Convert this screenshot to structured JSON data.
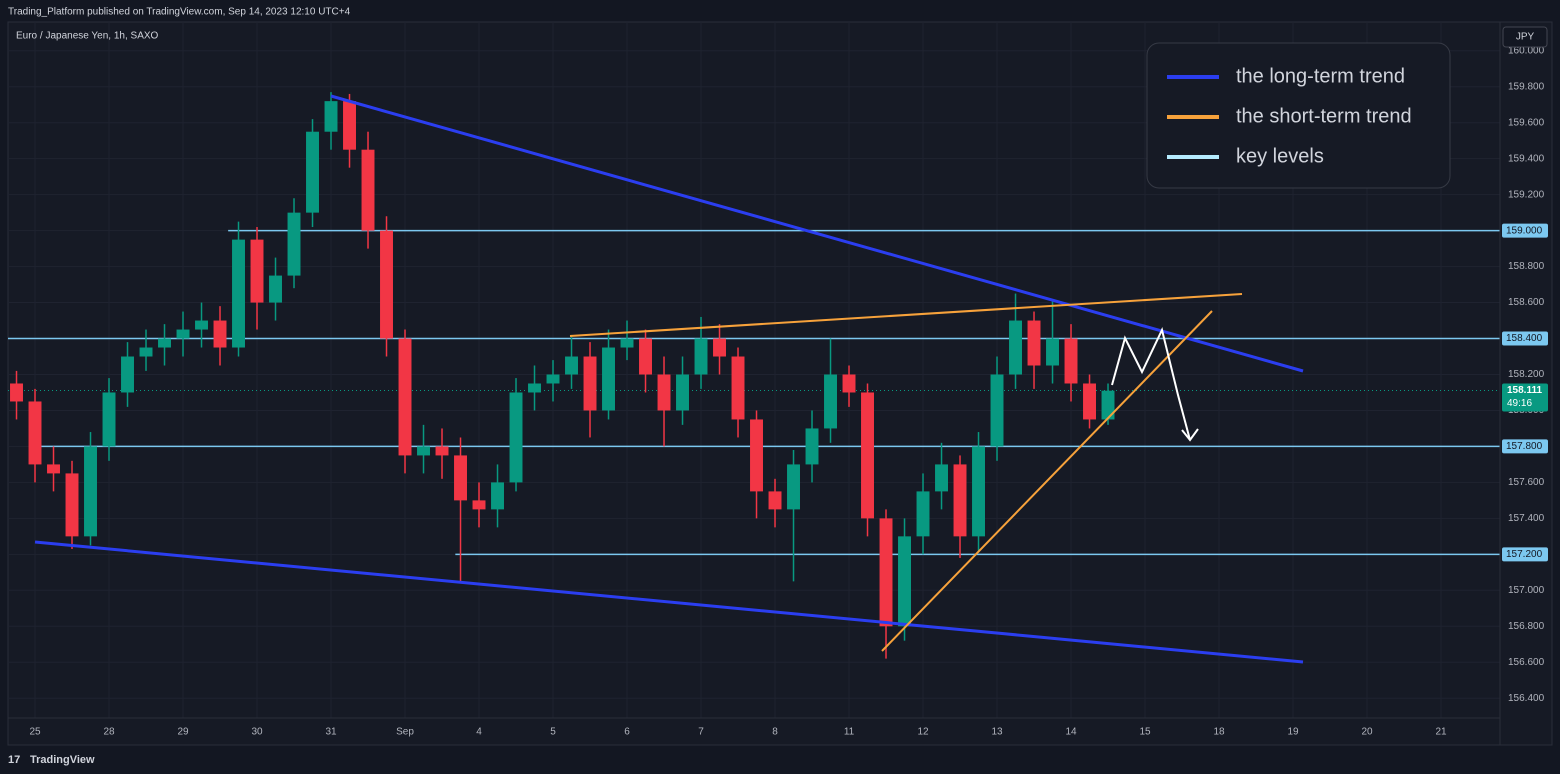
{
  "header": "Trading_Platform published on TradingView.com, Sep 14, 2023 12:10 UTC+4",
  "brand": "TradingView",
  "chart_data": {
    "type": "candlestick",
    "title": "Euro / Japanese Yen, 1h, SAXO",
    "currency": "JPY",
    "up_color": "#089981",
    "down_color": "#f23645",
    "x": [
      -0.25,
      0,
      0.25,
      0.5,
      0.75,
      1,
      1.25,
      1.5,
      1.75,
      2,
      2.25,
      2.5,
      2.75,
      3,
      3.25,
      3.5,
      3.75,
      4,
      4.25,
      4.5,
      4.75,
      5,
      5.25,
      5.5,
      5.75,
      6,
      6.25,
      6.5,
      6.75,
      7,
      7.25,
      7.5,
      7.75,
      8,
      8.25,
      8.5,
      8.75,
      9,
      9.25,
      9.5,
      9.75,
      10,
      10.25,
      10.5,
      10.75,
      11,
      11.25,
      11.5,
      11.75,
      12,
      12.25,
      12.5,
      12.75,
      13,
      13.25,
      13.5,
      13.75,
      14,
      14.25,
      14.5
    ],
    "open": [
      158.15,
      158.05,
      157.7,
      157.65,
      157.3,
      157.8,
      158.1,
      158.3,
      158.35,
      158.4,
      158.45,
      158.5,
      158.35,
      158.95,
      158.6,
      158.75,
      159.1,
      159.55,
      159.72,
      159.45,
      159.0,
      158.4,
      157.75,
      157.8,
      157.75,
      157.5,
      157.45,
      157.6,
      158.1,
      158.15,
      158.2,
      158.3,
      158.0,
      158.35,
      158.4,
      158.2,
      158.0,
      158.2,
      158.4,
      158.3,
      157.95,
      157.55,
      157.45,
      157.7,
      157.9,
      158.2,
      158.1,
      157.4,
      156.8,
      157.3,
      157.55,
      157.7,
      157.3,
      157.8,
      158.2,
      158.5,
      158.25,
      158.4,
      158.15,
      157.95
    ],
    "high": [
      158.22,
      158.12,
      157.8,
      157.72,
      157.88,
      158.18,
      158.38,
      158.45,
      158.48,
      158.55,
      158.6,
      158.58,
      159.05,
      159.02,
      158.85,
      159.18,
      159.62,
      159.77,
      159.76,
      159.55,
      159.08,
      158.45,
      157.92,
      157.9,
      157.85,
      157.6,
      157.7,
      158.18,
      158.25,
      158.28,
      158.42,
      158.38,
      158.45,
      158.5,
      158.45,
      158.3,
      158.3,
      158.52,
      158.48,
      158.35,
      158.0,
      157.62,
      157.78,
      158.0,
      158.4,
      158.25,
      158.15,
      157.45,
      157.4,
      157.65,
      157.82,
      157.75,
      157.88,
      158.3,
      158.65,
      158.55,
      158.62,
      158.48,
      158.2,
      158.15
    ],
    "low": [
      157.95,
      157.6,
      157.55,
      157.23,
      157.25,
      157.72,
      158.02,
      158.22,
      158.25,
      158.3,
      158.35,
      158.25,
      158.3,
      158.45,
      158.5,
      158.68,
      159.02,
      159.45,
      159.35,
      158.9,
      158.3,
      157.65,
      157.65,
      157.62,
      157.05,
      157.35,
      157.35,
      157.55,
      158.0,
      158.05,
      158.12,
      157.85,
      157.95,
      158.28,
      158.1,
      157.8,
      157.92,
      158.12,
      158.2,
      157.85,
      157.4,
      157.35,
      157.05,
      157.6,
      157.82,
      158.02,
      157.3,
      156.62,
      156.72,
      157.2,
      157.45,
      157.18,
      157.22,
      157.72,
      158.12,
      158.12,
      158.15,
      158.05,
      157.9,
      157.92
    ],
    "close": [
      158.05,
      157.7,
      157.65,
      157.3,
      157.8,
      158.1,
      158.3,
      158.35,
      158.4,
      158.45,
      158.5,
      158.35,
      158.95,
      158.6,
      158.75,
      159.1,
      159.55,
      159.72,
      159.45,
      159.0,
      158.4,
      157.75,
      157.8,
      157.75,
      157.5,
      157.45,
      157.6,
      158.1,
      158.15,
      158.2,
      158.3,
      158.0,
      158.35,
      158.4,
      158.2,
      158.0,
      158.2,
      158.4,
      158.3,
      157.95,
      157.55,
      157.45,
      157.7,
      157.9,
      158.2,
      158.1,
      157.4,
      156.8,
      157.3,
      157.55,
      157.7,
      157.3,
      157.8,
      158.2,
      158.5,
      158.25,
      158.4,
      158.15,
      157.95,
      158.11
    ],
    "xlim": [
      -0.365,
      19.797
    ],
    "xticks": [
      {
        "value": 0,
        "label": "25"
      },
      {
        "value": 1,
        "label": "28"
      },
      {
        "value": 2,
        "label": "29"
      },
      {
        "value": 3,
        "label": "30"
      },
      {
        "value": 4,
        "label": "31"
      },
      {
        "value": 5,
        "label": "Sep"
      },
      {
        "value": 6,
        "label": "4"
      },
      {
        "value": 7,
        "label": "5"
      },
      {
        "value": 8,
        "label": "6"
      },
      {
        "value": 9,
        "label": "7"
      },
      {
        "value": 10,
        "label": "8"
      },
      {
        "value": 11,
        "label": "11"
      },
      {
        "value": 12,
        "label": "12"
      },
      {
        "value": 13,
        "label": "13"
      },
      {
        "value": 14,
        "label": "14"
      },
      {
        "value": 15,
        "label": "15"
      },
      {
        "value": 16,
        "label": "18"
      },
      {
        "value": 17,
        "label": "19"
      },
      {
        "value": 18,
        "label": "20"
      },
      {
        "value": 19,
        "label": "21"
      }
    ],
    "ylim": [
      156.29,
      160.16
    ],
    "yticks": [
      {
        "value": 156.4,
        "label": "156.400"
      },
      {
        "value": 156.6,
        "label": "156.600"
      },
      {
        "value": 156.8,
        "label": "156.800"
      },
      {
        "value": 157.0,
        "label": "157.000"
      },
      {
        "value": 157.2,
        "label": "157.200"
      },
      {
        "value": 157.4,
        "label": "157.400"
      },
      {
        "value": 157.6,
        "label": "157.600"
      },
      {
        "value": 157.8,
        "label": "157.800"
      },
      {
        "value": 158.0,
        "label": "158.000"
      },
      {
        "value": 158.2,
        "label": "158.200"
      },
      {
        "value": 158.4,
        "label": "158.400"
      },
      {
        "value": 158.6,
        "label": "158.600"
      },
      {
        "value": 158.8,
        "label": "158.800"
      },
      {
        "value": 159.0,
        "label": "159.000"
      },
      {
        "value": 159.2,
        "label": "159.200"
      },
      {
        "value": 159.4,
        "label": "159.400"
      },
      {
        "value": 159.6,
        "label": "159.600"
      },
      {
        "value": 159.8,
        "label": "159.800"
      },
      {
        "value": 160.0,
        "label": "160.000"
      }
    ],
    "grid": true,
    "key_levels": [
      {
        "value": 159.0,
        "label": "159.000",
        "start": 2.61
      },
      {
        "value": 158.4,
        "label": "158.400"
      },
      {
        "value": 157.8,
        "label": "157.800",
        "start": 0.04
      },
      {
        "value": 157.2,
        "label": "157.200",
        "start": 5.68
      }
    ],
    "key_level_color": "#7cc8f0",
    "last_price": {
      "value": 158.111,
      "label": "158.111",
      "countdown": "49:16"
    },
    "legend_position": "top-right",
    "legend": [
      {
        "name": "the long-term trend",
        "color": "#2b3ef0"
      },
      {
        "name": "the short-term trend",
        "color": "#f7a23b"
      },
      {
        "name": "key levels",
        "color": "#b5ecff"
      }
    ]
  }
}
